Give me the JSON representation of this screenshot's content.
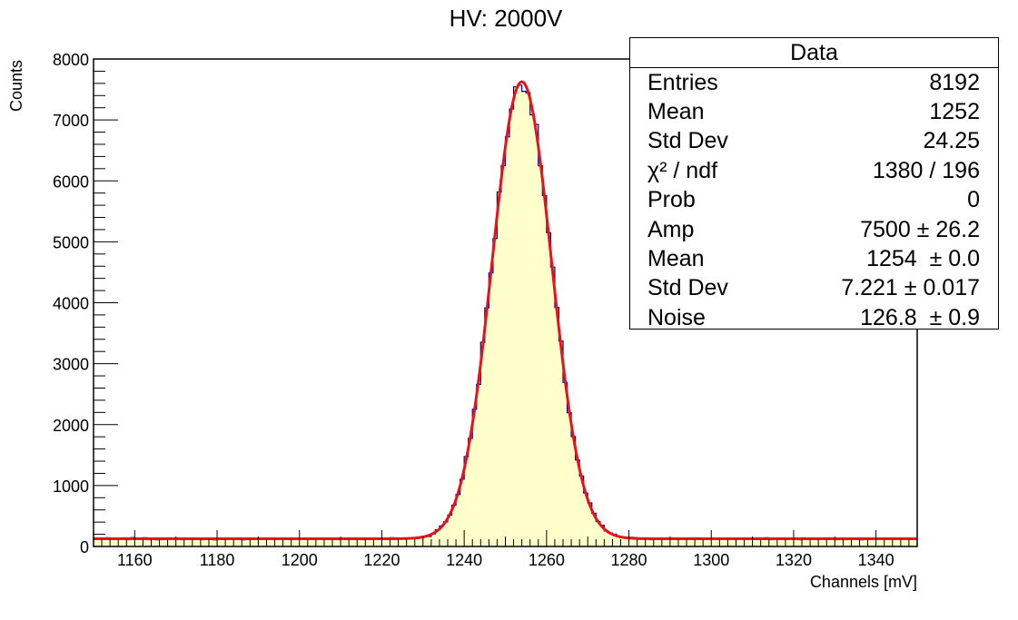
{
  "chart_data": {
    "type": "histogram",
    "title": "HV: 2000V",
    "xlabel": "Channels [mV]",
    "ylabel": "Counts",
    "xlim": [
      1150,
      1350
    ],
    "ylim": [
      0,
      8000
    ],
    "x_ticks": [
      1160,
      1180,
      1200,
      1220,
      1240,
      1260,
      1280,
      1300,
      1320,
      1340
    ],
    "y_ticks": [
      0,
      1000,
      2000,
      3000,
      4000,
      5000,
      6000,
      7000,
      8000
    ],
    "histogram_color": "#000080",
    "fill_color": "#ffffcc",
    "fit_color": "#e8121b",
    "fit": {
      "model": "gaussian + constant",
      "amp": 7500,
      "mean": 1254,
      "sigma": 7.221,
      "noise": 126.8
    },
    "stats_box": {
      "title": "Data",
      "rows": [
        {
          "label": "Entries",
          "value": "8192"
        },
        {
          "label": "Mean",
          "value": "1252"
        },
        {
          "label": "Std Dev",
          "value": "24.25"
        },
        {
          "label": "χ² / ndf",
          "value": "1380 / 196"
        },
        {
          "label": "Prob",
          "value": "0"
        },
        {
          "label": "Amp",
          "value": "7500 ± 26.2"
        },
        {
          "label": "Mean",
          "value": "1254  ± 0.0"
        },
        {
          "label": "Std Dev",
          "value": "7.221 ± 0.017"
        },
        {
          "label": "Noise",
          "value": "126.8  ± 0.9"
        }
      ]
    }
  }
}
